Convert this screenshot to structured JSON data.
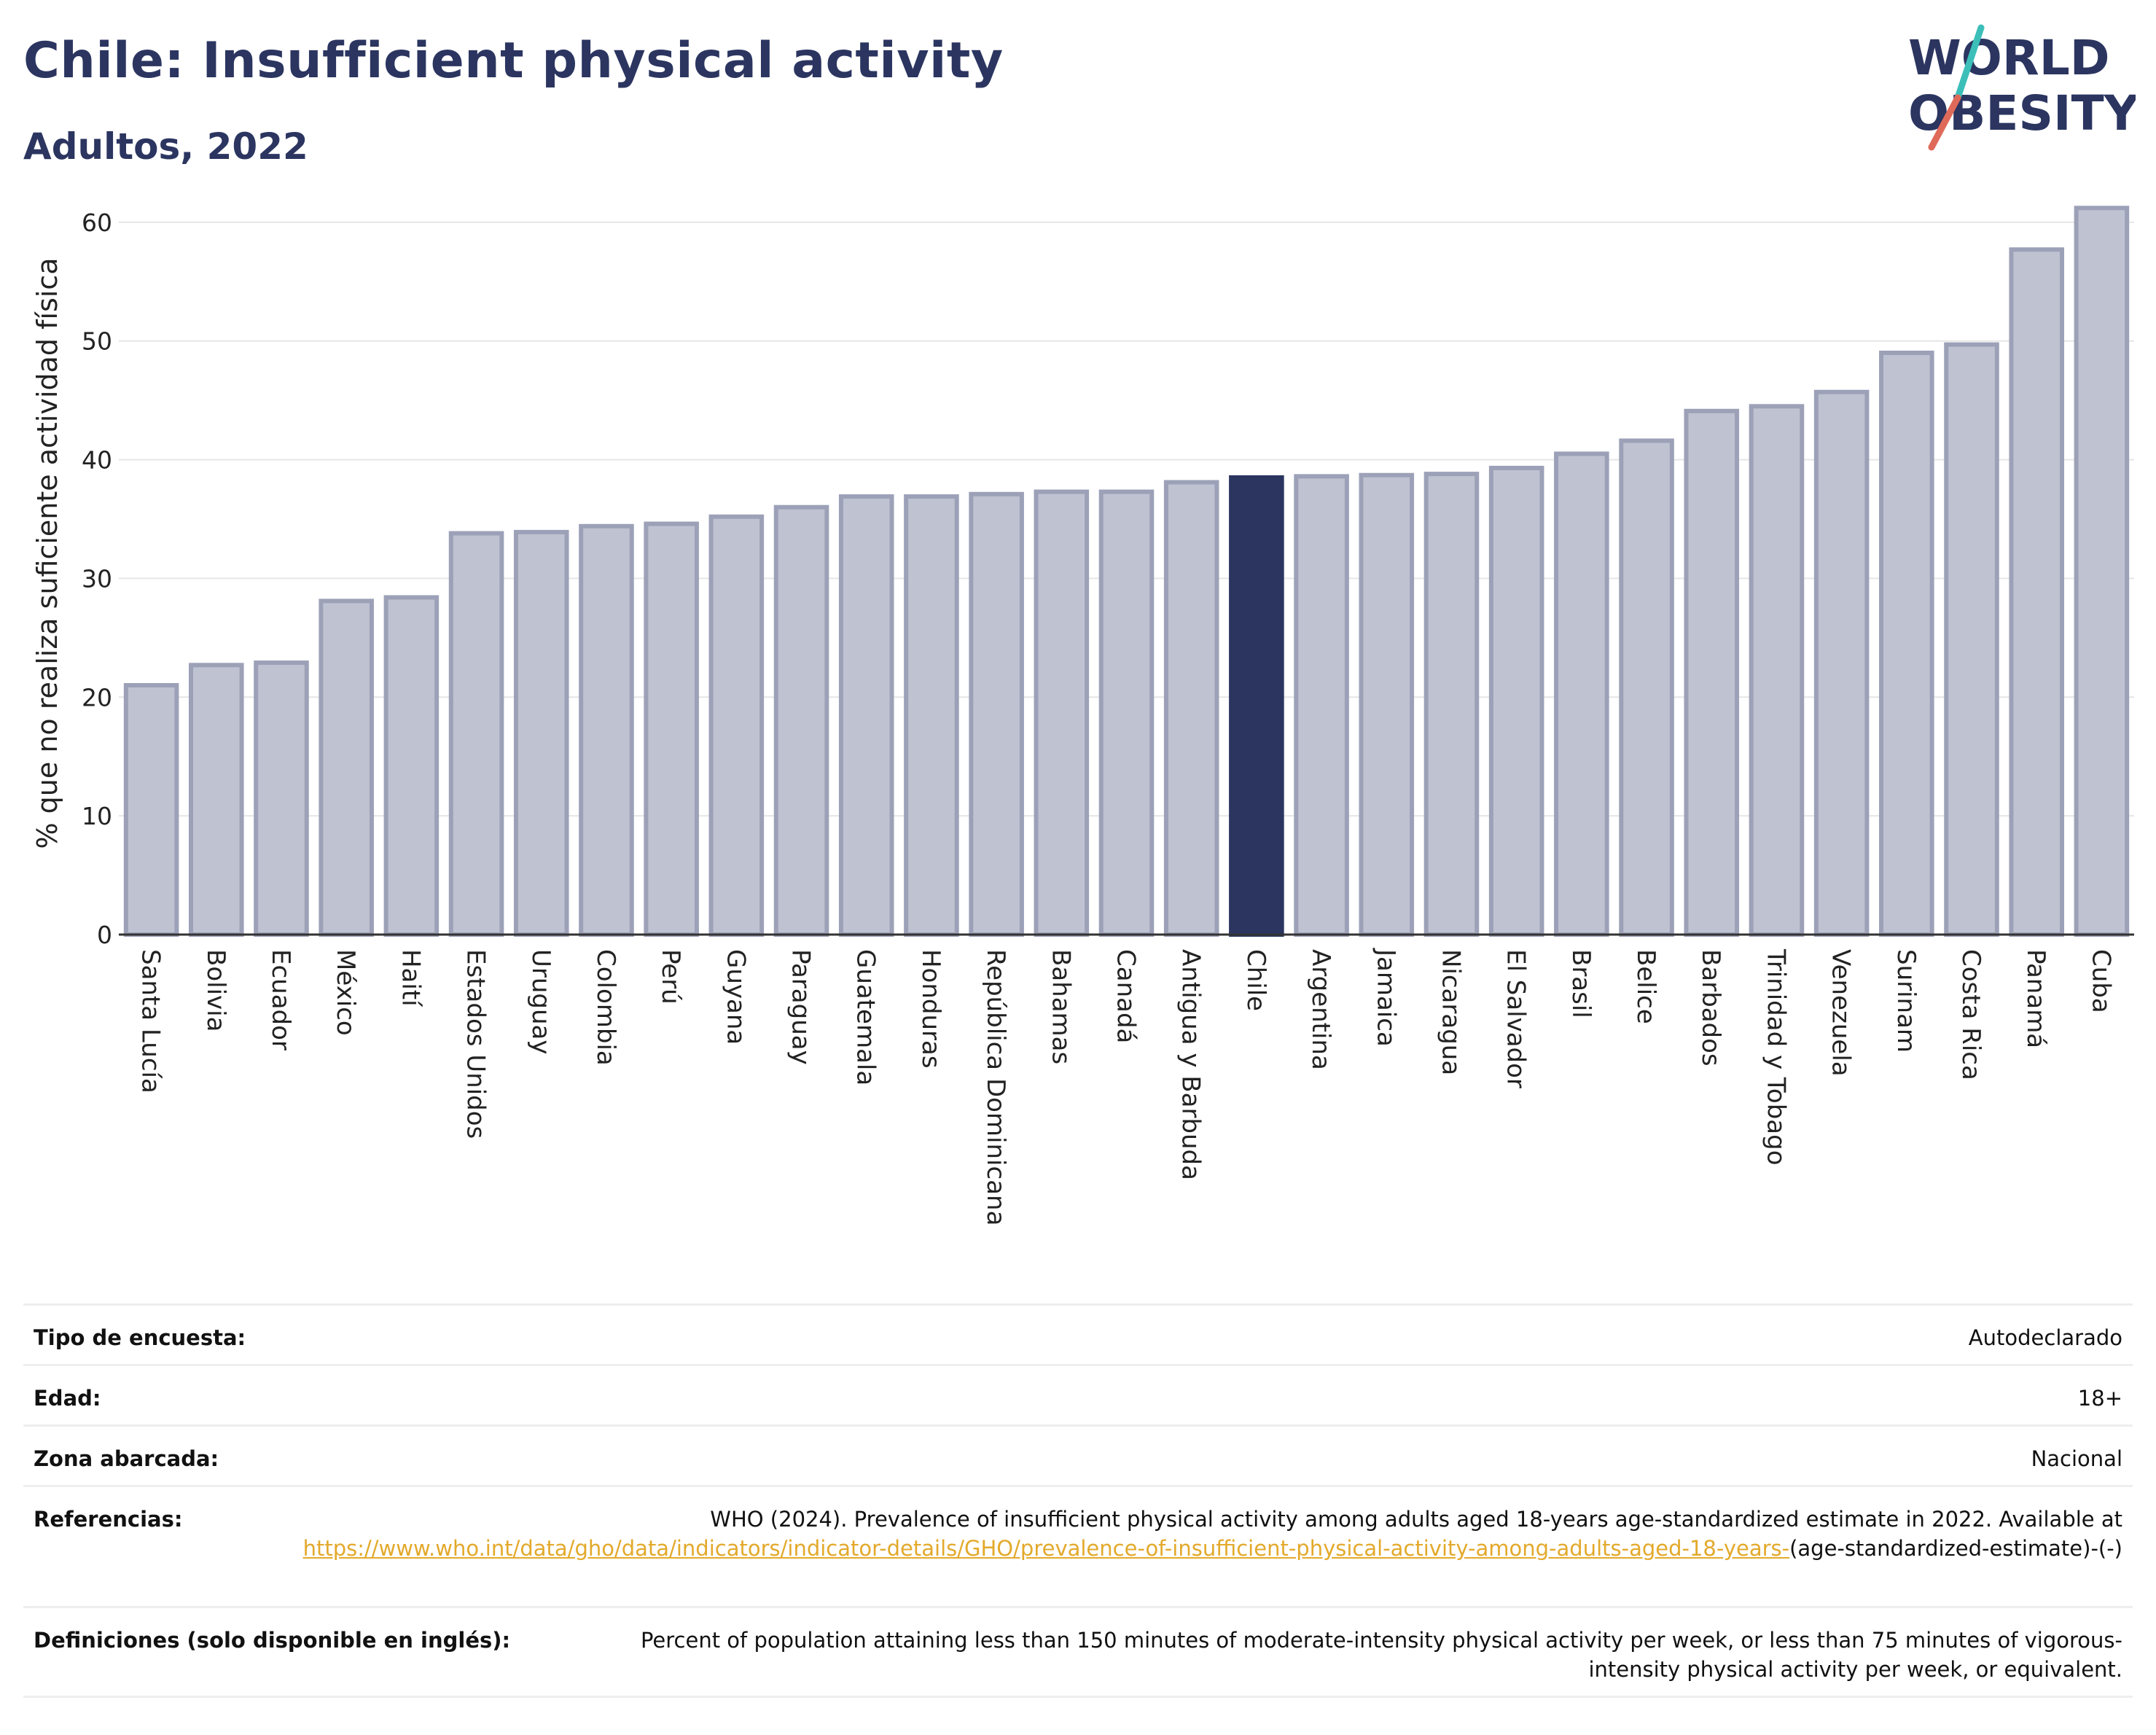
{
  "header": {
    "title": "Chile: Insufficient physical activity",
    "subtitle": "Adultos, 2022"
  },
  "logo": {
    "line1": "WORLD",
    "line2": "OBESITY",
    "accent_teal": "#3cbfb9",
    "accent_red": "#e06a5a"
  },
  "chart_data": {
    "type": "bar",
    "ylabel": "% que no realiza suficiente actividad física",
    "ylim": [
      0,
      63
    ],
    "yticks": [
      0,
      10,
      20,
      30,
      40,
      50,
      60
    ],
    "grid": true,
    "highlight": "Chile",
    "colors": {
      "bar": "#bfc2d1",
      "bar_border": "#9ca1b8",
      "highlight": "#2b3560"
    },
    "categories": [
      "Santa Lucía",
      "Bolivia",
      "Ecuador",
      "México",
      "Haití",
      "Estados Unidos",
      "Uruguay",
      "Colombia",
      "Perú",
      "Guyana",
      "Paraguay",
      "Guatemala",
      "Honduras",
      "República Dominicana",
      "Bahamas",
      "Canadá",
      "Antigua y Barbuda",
      "Chile",
      "Argentina",
      "Jamaica",
      "Nicaragua",
      "El Salvador",
      "Brasil",
      "Belice",
      "Barbados",
      "Trinidad y Tobago",
      "Venezuela",
      "Surinam",
      "Costa Rica",
      "Panamá",
      "Cuba"
    ],
    "values": [
      21.0,
      22.7,
      22.9,
      28.1,
      28.4,
      33.8,
      33.9,
      34.4,
      34.6,
      35.2,
      36.0,
      36.9,
      36.9,
      37.1,
      37.3,
      37.3,
      38.1,
      38.5,
      38.6,
      38.7,
      38.8,
      39.3,
      40.5,
      41.6,
      44.1,
      44.5,
      45.7,
      49.0,
      49.7,
      57.7,
      61.2
    ]
  },
  "info_table": {
    "rows": [
      {
        "label": "Tipo de encuesta:",
        "value": "Autodeclarado"
      },
      {
        "label": "Edad:",
        "value": "18+"
      },
      {
        "label": "Zona abarcada:",
        "value": "Nacional"
      }
    ],
    "references": {
      "label": "Referencias:",
      "text": "WHO (2024). Prevalence of insufficient physical activity among adults aged 18-years age-standardized estimate in 2022. Available at",
      "link": "https://www.who.int/data/gho/data/indicators/indicator-details/GHO/prevalence-of-insufficient-physical-activity-among-adults-aged-18-years-",
      "link_suffix": "(age-standardized-estimate)-(-)"
    },
    "definitions": {
      "label": "Definiciones (solo disponible en inglés):",
      "text": "Percent of population attaining less than 150 minutes of moderate-intensity physical activity per week, or less than 75 minutes of vigorous-intensity physical activity per week, or equivalent."
    }
  }
}
